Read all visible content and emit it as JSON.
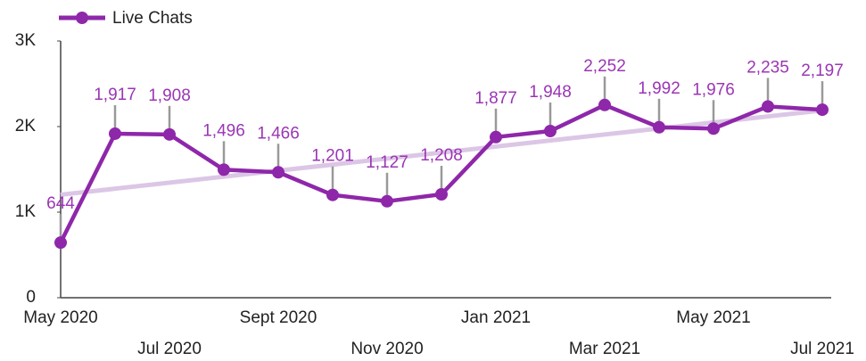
{
  "chart_data": {
    "type": "line",
    "categories": [
      "May 2020",
      null,
      "Jul 2020",
      null,
      "Sept 2020",
      null,
      "Nov 2020",
      null,
      "Jan 2021",
      null,
      "Mar 2021",
      null,
      "May 2021",
      null,
      "Jul 2021"
    ],
    "series": [
      {
        "name": "Live Chats",
        "color": "#8e27aa",
        "values": [
          644,
          1917,
          1908,
          1496,
          1466,
          1201,
          1127,
          1208,
          1877,
          1948,
          2252,
          1992,
          1976,
          2235,
          2197
        ],
        "value_labels": [
          "644",
          "1,917",
          "1,908",
          "1,496",
          "1,466",
          "1,201",
          "1,127",
          "1,208",
          "1,877",
          "1,948",
          "2,252",
          "1,992",
          "1,976",
          "2,235",
          "2,197"
        ]
      }
    ],
    "ylim": [
      0,
      3000
    ],
    "yticks": [
      0,
      {
        "value": 1000,
        "label": "1K"
      },
      {
        "value": 2000,
        "label": "2K"
      },
      {
        "value": 3000,
        "label": "3K"
      }
    ],
    "trendline": true,
    "trendline_color": "#dcc6e6",
    "legend": "top-left"
  }
}
